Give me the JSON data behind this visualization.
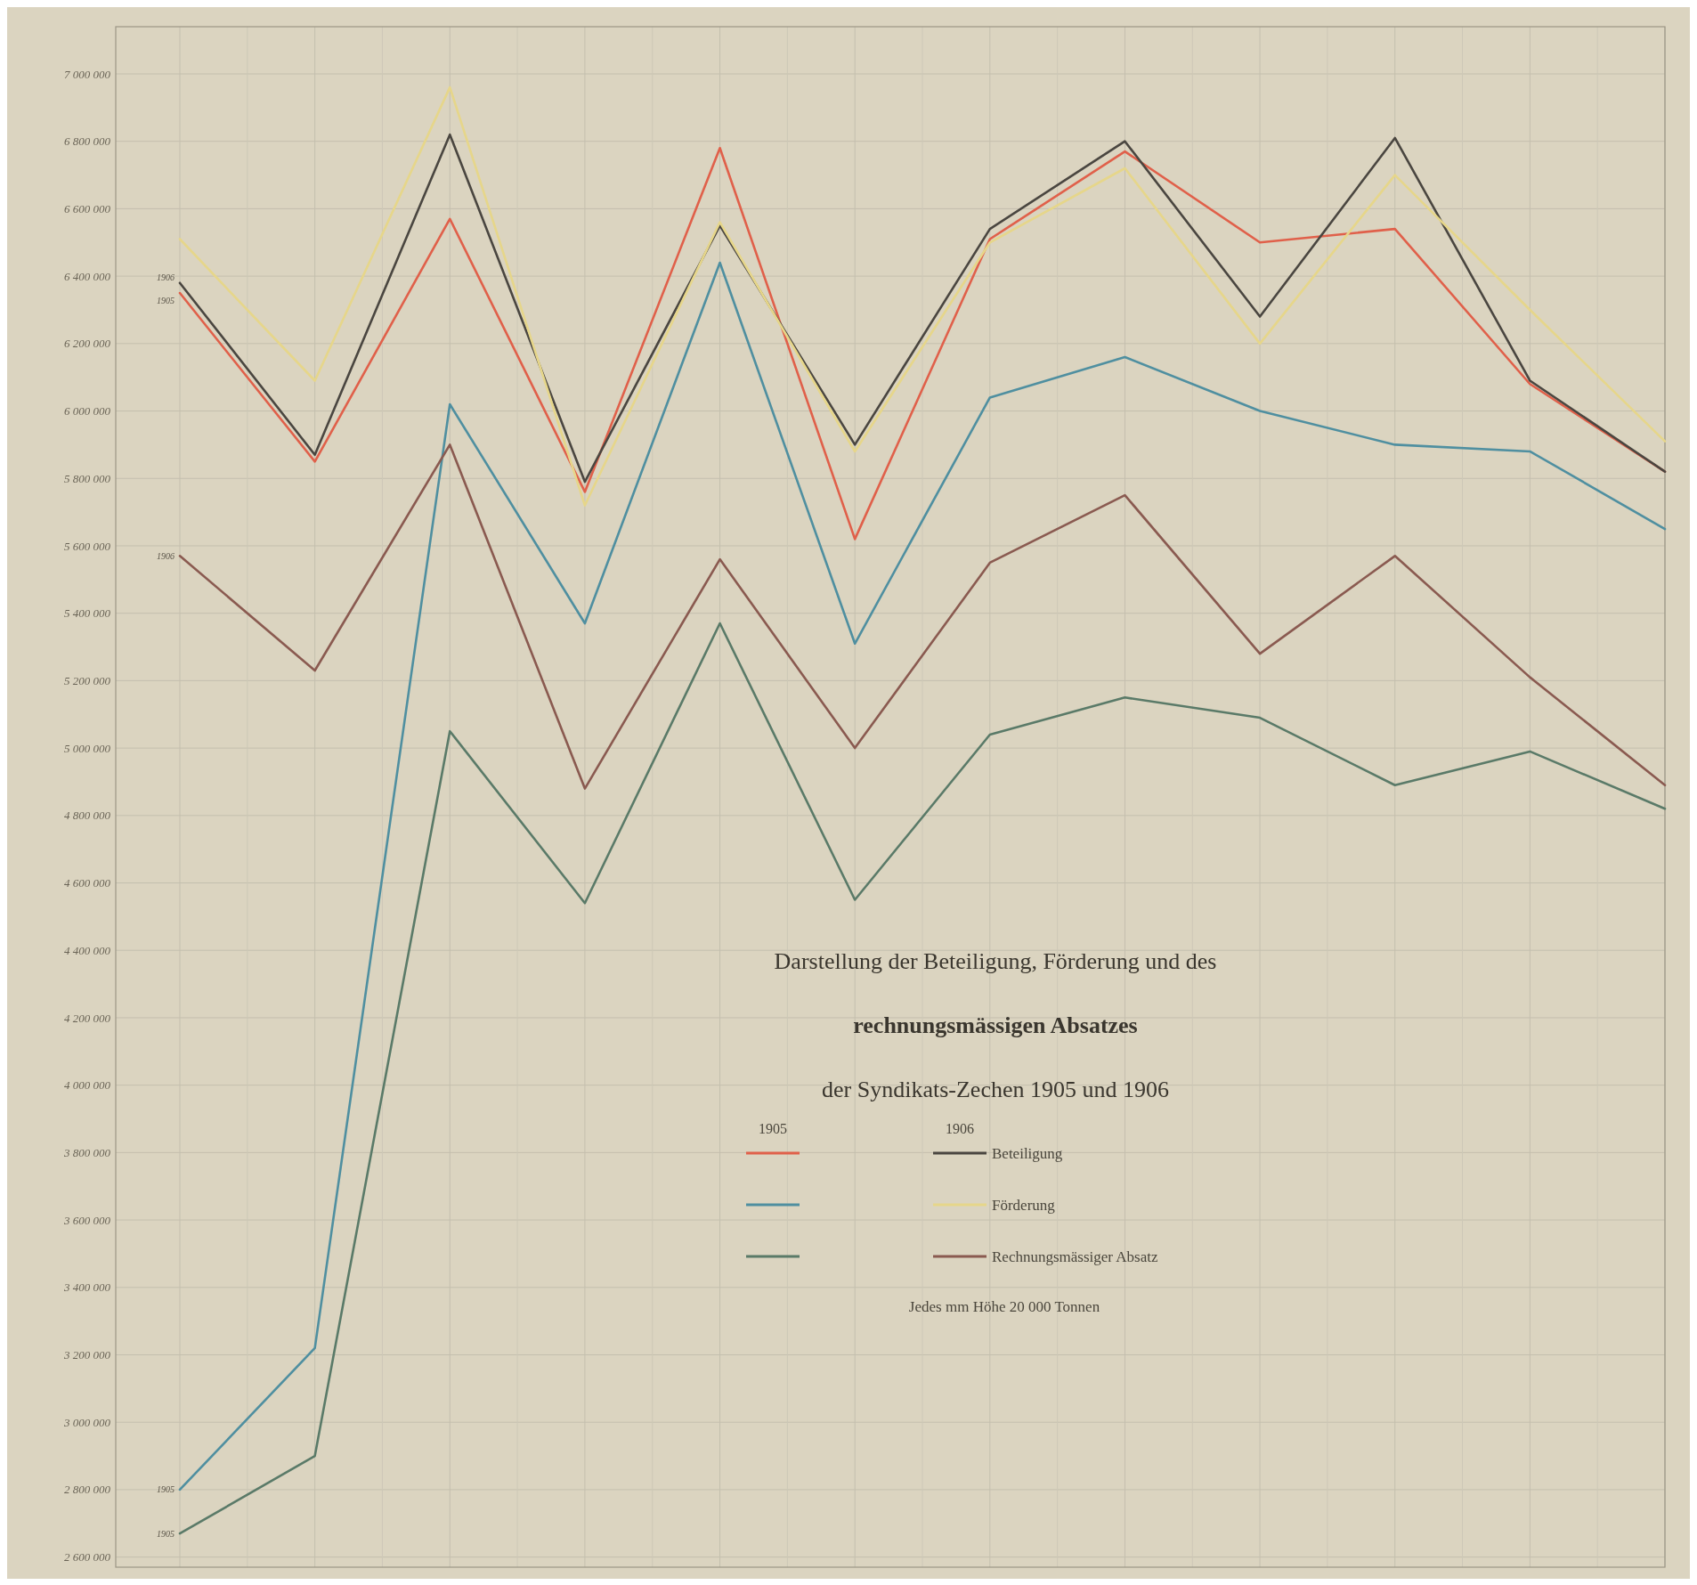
{
  "chart_data": {
    "type": "line",
    "title": "Darstellung der Beteiligung, Förderung und des\nrechnungsmässigen Absatzes\nder Syndikats-Zechen 1905 und 1906",
    "categories": [
      null,
      null,
      null,
      null,
      null,
      null,
      null,
      null,
      null,
      null,
      null,
      null
    ],
    "series": [
      {
        "color": "#e0604a",
        "values": [
          6350000,
          5850000,
          6570000,
          5760000,
          6780000,
          5620000,
          6510000,
          6770000,
          6500000,
          6540000,
          6080000,
          5820000
        ]
      },
      {
        "name": "Beteiligung",
        "color": "#4a4640",
        "values": [
          6380000,
          5870000,
          6820000,
          5790000,
          6550000,
          5900000,
          6540000,
          6800000,
          6280000,
          6810000,
          6090000,
          5820000
        ]
      },
      {
        "color": "#4f8fa0",
        "values": [
          2800000,
          3220000,
          6020000,
          5370000,
          6440000,
          5310000,
          6040000,
          6160000,
          6000000,
          5900000,
          5880000,
          5650000
        ]
      },
      {
        "name": "Förderung",
        "color": "#e6d68a",
        "values": [
          6510000,
          6090000,
          6960000,
          5720000,
          6560000,
          5880000,
          6500000,
          6720000,
          6200000,
          6700000,
          6300000,
          5910000
        ]
      },
      {
        "color": "#5a7a68",
        "values": [
          2670000,
          2900000,
          5050000,
          4540000,
          5370000,
          4550000,
          5040000,
          5150000,
          5090000,
          4890000,
          4990000,
          4820000
        ]
      },
      {
        "name": "Rechnungsmässiger Absatz",
        "color": "#8a5a50",
        "values": [
          5570000,
          5230000,
          5900000,
          4880000,
          5560000,
          5000000,
          5550000,
          5750000,
          5280000,
          5570000,
          5210000,
          4890000
        ]
      }
    ],
    "ylim": [
      2570000,
      7140000
    ],
    "yticks": [
      {
        "value": 2600000,
        "label": "2 600 000"
      },
      {
        "value": 2800000,
        "label": "2 800 000"
      },
      {
        "value": 3000000,
        "label": "3 000 000"
      },
      {
        "value": 3200000,
        "label": "3 200 000"
      },
      {
        "value": 3400000,
        "label": "3 400 000"
      },
      {
        "value": 3600000,
        "label": "3 600 000"
      },
      {
        "value": 3800000,
        "label": "3 800 000"
      },
      {
        "value": 4000000,
        "label": "4 000 000"
      },
      {
        "value": 4200000,
        "label": "4 200 000"
      },
      {
        "value": 4400000,
        "label": "4 400 000"
      },
      {
        "value": 4600000,
        "label": "4 600 000"
      },
      {
        "value": 4800000,
        "label": "4 800 000"
      },
      {
        "value": 5000000,
        "label": "5 000 000"
      },
      {
        "value": 5200000,
        "label": "5 200 000"
      },
      {
        "value": 5400000,
        "label": "5 400 000"
      },
      {
        "value": 5600000,
        "label": "5 600 000"
      },
      {
        "value": 5800000,
        "label": "5 800 000"
      },
      {
        "value": 6000000,
        "label": "6 000 000"
      },
      {
        "value": 6200000,
        "label": "6 200 000"
      },
      {
        "value": 6400000,
        "label": "6 400 000"
      },
      {
        "value": 6600000,
        "label": "6 600 000"
      },
      {
        "value": 6800000,
        "label": "6 800 000"
      },
      {
        "value": 7000000,
        "label": "7 000 000"
      }
    ],
    "grid": true,
    "legend": "bottom",
    "marker": "none",
    "line_style": "solid",
    "annotations": [
      "1905",
      "1906",
      "Jedes mm Höhe 20 000 Tonnen",
      "1906",
      "1905",
      "1906",
      "1905",
      "1905"
    ]
  }
}
